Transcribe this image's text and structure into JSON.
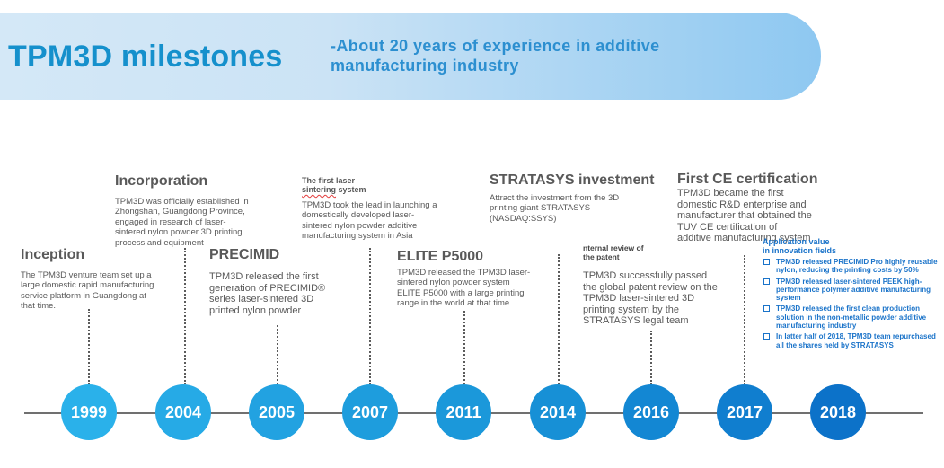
{
  "header": {
    "title": "TPM3D milestones",
    "subtitle": "-About 20 years of experience in additive manufacturing industry"
  },
  "colors": {
    "title": "#1590cc",
    "banner_start": "#d4e8f7",
    "banner_end": "#8ec8f1",
    "node_light": "#27b0ea",
    "node_dark": "#0c6ec8",
    "application_text": "#1a73c9"
  },
  "milestones": [
    {
      "year": "1999",
      "heading": "Inception",
      "description": "The TPM3D venture team set up a large domestic rapid manufacturing service platform in Guangdong at that time."
    },
    {
      "year": "2004",
      "heading": "Incorporation",
      "description": "TPM3D  was officially established in Zhongshan, Guangdong Province, engaged in research of laser-sintered nylon powder 3D printing process and equipment"
    },
    {
      "year": "2005",
      "heading": "PRECIMID",
      "description": "TPM3D released the first generation of PRECIMID® series laser-sintered 3D printed nylon powder"
    },
    {
      "year": "2007",
      "heading_line1": "The first laser",
      "heading_line2_underlined": "sintering",
      "heading_line2_rest": " system",
      "description": " TPM3D took the lead in launching a domestically developed laser-sintered nylon powder additive manufacturing system in Asia"
    },
    {
      "year": "2011",
      "heading": "ELITE P5000",
      "description": "TPM3D released the TPM3D laser-sintered nylon powder system ELITE P5000 with a large printing range in the world at that time"
    },
    {
      "year": "2014",
      "heading": "STRATASYS investment",
      "description": "Attract the investment from the 3D printing giant STRATASYS (NASDAQ:SSYS)"
    },
    {
      "year": "2016",
      "heading_line1": "nternal review of",
      "heading_line2": "the patent",
      "description": "TPM3D successfully passed the global patent review on the TPM3D laser-sintered 3D printing system by the STRATASYS legal team"
    },
    {
      "year": "2017",
      "heading": "First CE certification",
      "description": "TPM3D became the first domestic R&D enterprise and manufacturer that obtained the TUV CE certification of additive manufacturing system"
    },
    {
      "year": "2018",
      "heading_line1": "Application value",
      "heading_line2": "in innovation fields",
      "items": [
        "TPM3D released PRECIMID Pro highly reusable nylon, reducing the printing costs by 50%",
        "TPM3D released laser-sintered PEEK high-performance polymer additive manufacturing system",
        "TPM3D released the first clean production solution in the non-metallic powder additive manufacturing industry",
        "In latter half of 2018, TPM3D team repurchased all the shares held   by STRATASYS"
      ]
    }
  ]
}
